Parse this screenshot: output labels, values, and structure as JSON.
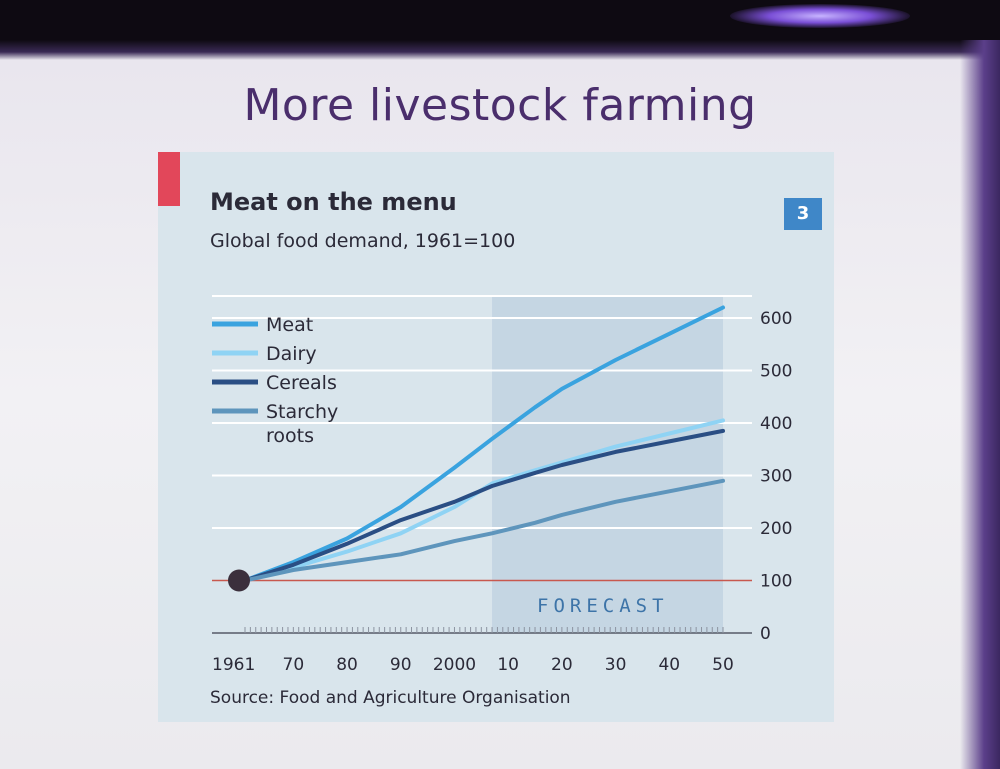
{
  "slide": {
    "title": "More livestock farming"
  },
  "chart": {
    "badge": "3",
    "source": "Source: Food and Agriculture Organisation"
  },
  "colors": {
    "meat": "#3aa3df",
    "dairy": "#8fd3f4",
    "cereals": "#2a4e84",
    "starchy": "#5e95bc",
    "baseline": "#c8584e",
    "forecast_band": "#c5d6e3"
  },
  "chart_data": {
    "type": "line",
    "title": "Meat on the menu",
    "subtitle": "Global food demand, 1961=100",
    "xlim": [
      1961,
      2050
    ],
    "ylim": [
      0,
      600
    ],
    "x_ticks": [
      {
        "value": 1961,
        "label": "1961"
      },
      {
        "value": 1970,
        "label": "70"
      },
      {
        "value": 1980,
        "label": "80"
      },
      {
        "value": 1990,
        "label": "90"
      },
      {
        "value": 2000,
        "label": "2000"
      },
      {
        "value": 2010,
        "label": "10"
      },
      {
        "value": 2020,
        "label": "20"
      },
      {
        "value": 2030,
        "label": "30"
      },
      {
        "value": 2040,
        "label": "40"
      },
      {
        "value": 2050,
        "label": "50"
      }
    ],
    "y_ticks": [
      0,
      100,
      200,
      300,
      400,
      500,
      600
    ],
    "grid": true,
    "legend_position": "top-left",
    "forecast_range": [
      2007,
      2050
    ],
    "forecast_label": "FORECAST",
    "start_point": {
      "x": 1961,
      "y": 100
    },
    "series": [
      {
        "name": "Meat",
        "color_key": "meat",
        "x": [
          1961,
          1970,
          1980,
          1990,
          2000,
          2007,
          2015,
          2020,
          2030,
          2040,
          2050
        ],
        "y": [
          100,
          135,
          180,
          240,
          315,
          370,
          430,
          465,
          520,
          570,
          620
        ]
      },
      {
        "name": "Dairy",
        "color_key": "dairy",
        "x": [
          1961,
          1970,
          1980,
          1990,
          2000,
          2007,
          2015,
          2020,
          2030,
          2040,
          2050
        ],
        "y": [
          100,
          125,
          155,
          190,
          240,
          285,
          310,
          325,
          355,
          380,
          405
        ]
      },
      {
        "name": "Cereals",
        "color_key": "cereals",
        "x": [
          1961,
          1970,
          1980,
          1990,
          2000,
          2007,
          2015,
          2020,
          2030,
          2040,
          2050
        ],
        "y": [
          100,
          130,
          170,
          215,
          250,
          280,
          305,
          320,
          345,
          365,
          385
        ]
      },
      {
        "name": "Starchy roots",
        "legend_lines": [
          "Starchy",
          "roots"
        ],
        "color_key": "starchy",
        "x": [
          1961,
          1970,
          1980,
          1990,
          2000,
          2007,
          2015,
          2020,
          2030,
          2040,
          2050
        ],
        "y": [
          100,
          120,
          135,
          150,
          175,
          190,
          210,
          225,
          250,
          270,
          290
        ]
      }
    ]
  }
}
